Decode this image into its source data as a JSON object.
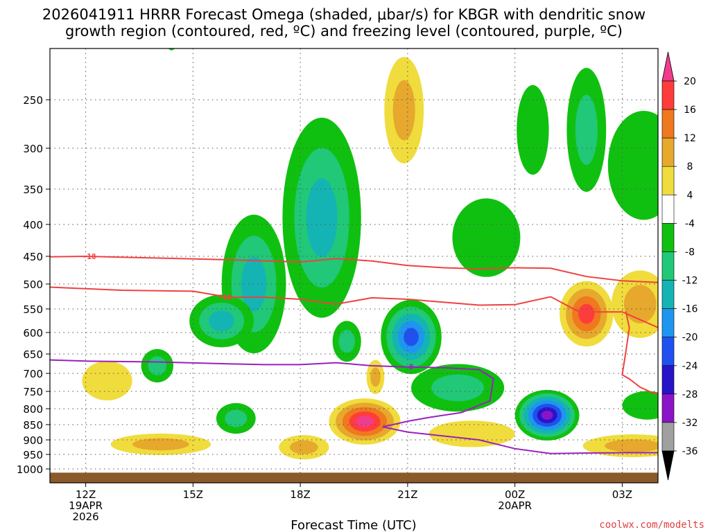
{
  "title": {
    "line1": "2026041911 HRRR Forecast Omega (shaded, μbar/s) for KBGR with dendritic snow",
    "line2": "growth region (contoured, red, ºC) and freezing level (contoured, purple, ºC)"
  },
  "credit": "coolwx.com/modelts",
  "colors": {
    "ground": "#8b5a2b",
    "snow_contour": "#f04040",
    "freezing_contour": "#9a1fc0",
    "grid": "#555555"
  },
  "chart_data": {
    "type": "heatmap",
    "xlabel": "Forecast Time (UTC)",
    "ylabel": "",
    "x_range": [
      11,
      28
    ],
    "y_range": [
      1050,
      190
    ],
    "y_ticks": [
      {
        "value": 250,
        "label": "250"
      },
      {
        "value": 300,
        "label": "300"
      },
      {
        "value": 350,
        "label": "350"
      },
      {
        "value": 400,
        "label": "400"
      },
      {
        "value": 450,
        "label": "450"
      },
      {
        "value": 500,
        "label": "500"
      },
      {
        "value": 550,
        "label": "550"
      },
      {
        "value": 600,
        "label": "600"
      },
      {
        "value": 650,
        "label": "650"
      },
      {
        "value": 700,
        "label": "700"
      },
      {
        "value": 750,
        "label": "750"
      },
      {
        "value": 800,
        "label": "800"
      },
      {
        "value": 850,
        "label": "850"
      },
      {
        "value": 900,
        "label": "900"
      },
      {
        "value": 950,
        "label": "950"
      },
      {
        "value": 1000,
        "label": "1000"
      }
    ],
    "x_ticks": [
      {
        "value": 12,
        "label": "12Z",
        "sub1": "19APR",
        "sub2": "2026"
      },
      {
        "value": 15,
        "label": "15Z",
        "sub1": "",
        "sub2": ""
      },
      {
        "value": 18,
        "label": "18Z",
        "sub1": "",
        "sub2": ""
      },
      {
        "value": 21,
        "label": "21Z",
        "sub1": "",
        "sub2": ""
      },
      {
        "value": 24,
        "label": "00Z",
        "sub1": "20APR",
        "sub2": ""
      },
      {
        "value": 27,
        "label": "03Z",
        "sub1": "",
        "sub2": ""
      }
    ],
    "colorbar": {
      "labels": [
        "20",
        "16",
        "12",
        "8",
        "4",
        "-4",
        "-8",
        "-12",
        "-16",
        "-20",
        "-24",
        "-28",
        "-32",
        "-36"
      ],
      "colors": [
        "#ff3c3c",
        "#f0781e",
        "#e6a82d",
        "#f0dc3c",
        "#ffffff",
        "#10c010",
        "#20c878",
        "#14b4b4",
        "#1e96f0",
        "#2050f0",
        "#2814c8",
        "#8c14c8",
        "#a0a0a0"
      ],
      "top_cap_color": "#f03c8c",
      "bottom_cap_color": "#000000"
    },
    "ground_level_hpa": 1013,
    "omega_regions": [
      {
        "x": 16.7,
        "p": 500,
        "rx": 0.9,
        "rp": 240,
        "levels": [
          -8,
          -12,
          -16
        ]
      },
      {
        "x": 18.6,
        "p": 390,
        "rx": 1.1,
        "rp": 270,
        "levels": [
          -8,
          -12,
          -16
        ]
      },
      {
        "x": 15.8,
        "p": 575,
        "rx": 0.9,
        "rp": 95,
        "levels": [
          -8,
          -12,
          -16
        ]
      },
      {
        "x": 14.0,
        "p": 680,
        "rx": 0.45,
        "rp": 65,
        "levels": [
          -8,
          -12
        ]
      },
      {
        "x": 16.2,
        "p": 830,
        "rx": 0.55,
        "rp": 70,
        "levels": [
          -8,
          -12
        ]
      },
      {
        "x": 21.1,
        "p": 610,
        "rx": 0.85,
        "rp": 150,
        "levels": [
          -8,
          -12,
          -16,
          -20,
          -24
        ]
      },
      {
        "x": 23.2,
        "p": 420,
        "rx": 0.95,
        "rp": 110,
        "levels": [
          -8
        ]
      },
      {
        "x": 22.4,
        "p": 740,
        "rx": 1.3,
        "rp": 110,
        "levels": [
          -8,
          -12
        ]
      },
      {
        "x": 24.9,
        "p": 820,
        "rx": 0.9,
        "rp": 130,
        "levels": [
          -8,
          -12,
          -16,
          -20,
          -24,
          -28,
          -32
        ]
      },
      {
        "x": 26.0,
        "p": 280,
        "rx": 0.55,
        "rp": 120,
        "levels": [
          -8,
          -12
        ]
      },
      {
        "x": 24.5,
        "p": 280,
        "rx": 0.45,
        "rp": 85,
        "levels": [
          -8
        ]
      },
      {
        "x": 27.6,
        "p": 320,
        "rx": 1.0,
        "rp": 120,
        "levels": [
          -8
        ]
      },
      {
        "x": 14.4,
        "p": 150,
        "rx": 0.45,
        "rp": 90,
        "levels": [
          -8
        ]
      },
      {
        "x": 27.7,
        "p": 790,
        "rx": 0.7,
        "rp": 60,
        "levels": [
          -8
        ]
      },
      {
        "x": 19.3,
        "p": 620,
        "rx": 0.4,
        "rp": 75,
        "levels": [
          -8,
          -12
        ]
      },
      {
        "x": 19.8,
        "p": 840,
        "rx": 1.0,
        "rp": 120,
        "levels": [
          4,
          8,
          12,
          16,
          20
        ]
      },
      {
        "x": 20.1,
        "p": 710,
        "rx": 0.25,
        "rp": 70,
        "levels": [
          4,
          8
        ]
      },
      {
        "x": 20.9,
        "p": 260,
        "rx": 0.55,
        "rp": 95,
        "levels": [
          4,
          8
        ]
      },
      {
        "x": 26.0,
        "p": 560,
        "rx": 0.75,
        "rp": 120,
        "levels": [
          4,
          8,
          12,
          16
        ]
      },
      {
        "x": 27.5,
        "p": 540,
        "rx": 0.8,
        "rp": 120,
        "levels": [
          4,
          8
        ]
      },
      {
        "x": 12.6,
        "p": 720,
        "rx": 0.7,
        "rp": 85,
        "levels": [
          4
        ]
      },
      {
        "x": 14.1,
        "p": 915,
        "rx": 1.4,
        "rp": 45,
        "levels": [
          4,
          8
        ]
      },
      {
        "x": 18.1,
        "p": 925,
        "rx": 0.7,
        "rp": 55,
        "levels": [
          4,
          8
        ]
      },
      {
        "x": 27.3,
        "p": 920,
        "rx": 1.4,
        "rp": 50,
        "levels": [
          4,
          8
        ]
      },
      {
        "x": 22.8,
        "p": 880,
        "rx": 1.2,
        "rp": 60,
        "levels": [
          4
        ]
      }
    ],
    "series": [
      {
        "name": "-18",
        "color": "#f04040",
        "label_x": 12.1,
        "x": [
          11,
          12,
          14,
          16,
          18,
          19,
          20,
          21,
          22,
          23,
          24,
          25,
          26,
          27,
          28
        ],
        "p": [
          451,
          450,
          453,
          456,
          460,
          454,
          458,
          466,
          470,
          472,
          470,
          471,
          486,
          494,
          497
        ]
      },
      {
        "name": "-12",
        "color": "#f04040",
        "label_x": 15.9,
        "x": [
          11,
          13,
          15,
          16,
          17,
          18,
          19,
          20,
          21,
          22,
          23,
          24,
          25,
          25.8,
          27,
          28,
          28.2
        ],
        "p": [
          506,
          512,
          514,
          526,
          526,
          530,
          540,
          527,
          530,
          536,
          542,
          541,
          525,
          556,
          556,
          589,
          600
        ]
      },
      {
        "name": "0",
        "color": "#9a1fc0",
        "label_x": 21.1,
        "x": [
          11,
          12,
          14,
          16,
          17,
          18,
          19,
          20,
          21,
          22,
          23,
          23.4,
          23.3,
          22.5,
          21.6,
          21,
          20.7,
          20.3,
          21,
          22,
          23,
          24,
          25,
          26,
          27,
          28
        ],
        "p": [
          665,
          668,
          670,
          675,
          677,
          677,
          672,
          680,
          683,
          685,
          690,
          714,
          777,
          812,
          827,
          839,
          847,
          857,
          874,
          887,
          900,
          930,
          947,
          945,
          944,
          944
        ]
      }
    ],
    "snow_loop": {
      "x": [
        28,
        27.8,
        27.5,
        27.2,
        27.0,
        27.1,
        27.2,
        27.1
      ],
      "p": [
        757,
        752,
        738,
        715,
        704,
        645,
        590,
        555
      ]
    }
  }
}
